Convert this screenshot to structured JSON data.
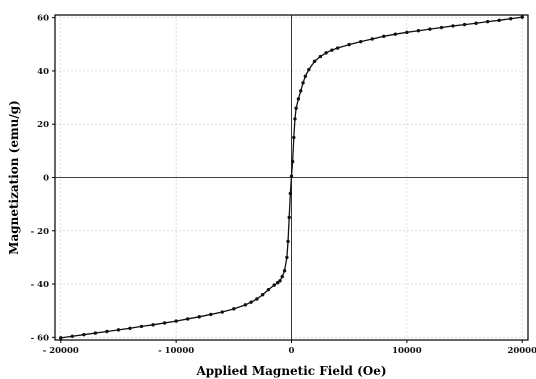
{
  "chart_data": {
    "type": "line",
    "title": "",
    "xlabel": "Applied Magnetic Field (Oe)",
    "ylabel": "Magnetization (emu/g)",
    "xlim": [
      -20500,
      20500
    ],
    "ylim": [
      -61,
      61
    ],
    "xticks": [
      -20000,
      -10000,
      0,
      10000,
      20000
    ],
    "xtick_labels": [
      "- 20000",
      "- 10000",
      "0",
      "10000",
      "20000"
    ],
    "yticks": [
      -60,
      -40,
      -20,
      0,
      20,
      40,
      60
    ],
    "ytick_labels": [
      "- 60",
      "- 40",
      "- 20",
      "0",
      "20",
      "40",
      "60"
    ],
    "grid": true,
    "legend": "none",
    "series": [
      {
        "x": [
          -20000,
          -19000,
          -18000,
          -17000,
          -16000,
          -15000,
          -14000,
          -13000,
          -12000,
          -11000,
          -10000,
          -9000,
          -8000,
          -7000,
          -6000,
          -5000,
          -4000,
          -3500,
          -3000,
          -2500,
          -2000,
          -1500,
          -1200,
          -1000,
          -800,
          -600,
          -400,
          -300,
          -200,
          -100,
          0,
          100,
          200,
          300,
          400,
          600,
          800,
          1000,
          1200,
          1500,
          2000,
          2500,
          3000,
          3500,
          4000,
          5000,
          6000,
          7000,
          8000,
          9000,
          10000,
          11000,
          12000,
          13000,
          14000,
          15000,
          16000,
          17000,
          18000,
          19000,
          20000
        ],
        "y": [
          -60.2,
          -59.6,
          -59.0,
          -58.4,
          -57.8,
          -57.2,
          -56.6,
          -55.9,
          -55.3,
          -54.6,
          -53.9,
          -53.1,
          -52.3,
          -51.4,
          -50.5,
          -49.3,
          -47.8,
          -46.8,
          -45.6,
          -44.0,
          -42.1,
          -40.4,
          -39.5,
          -38.8,
          -37.2,
          -35.0,
          -30.0,
          -24.0,
          -15.0,
          -6.0,
          0.5,
          6.0,
          15.0,
          22.0,
          26.0,
          29.5,
          32.5,
          35.5,
          38.0,
          40.5,
          43.6,
          45.4,
          46.8,
          47.8,
          48.6,
          49.9,
          51.0,
          52.0,
          53.0,
          53.8,
          54.5,
          55.1,
          55.7,
          56.3,
          56.9,
          57.4,
          57.9,
          58.5,
          59.0,
          59.6,
          60.2
        ]
      }
    ]
  }
}
